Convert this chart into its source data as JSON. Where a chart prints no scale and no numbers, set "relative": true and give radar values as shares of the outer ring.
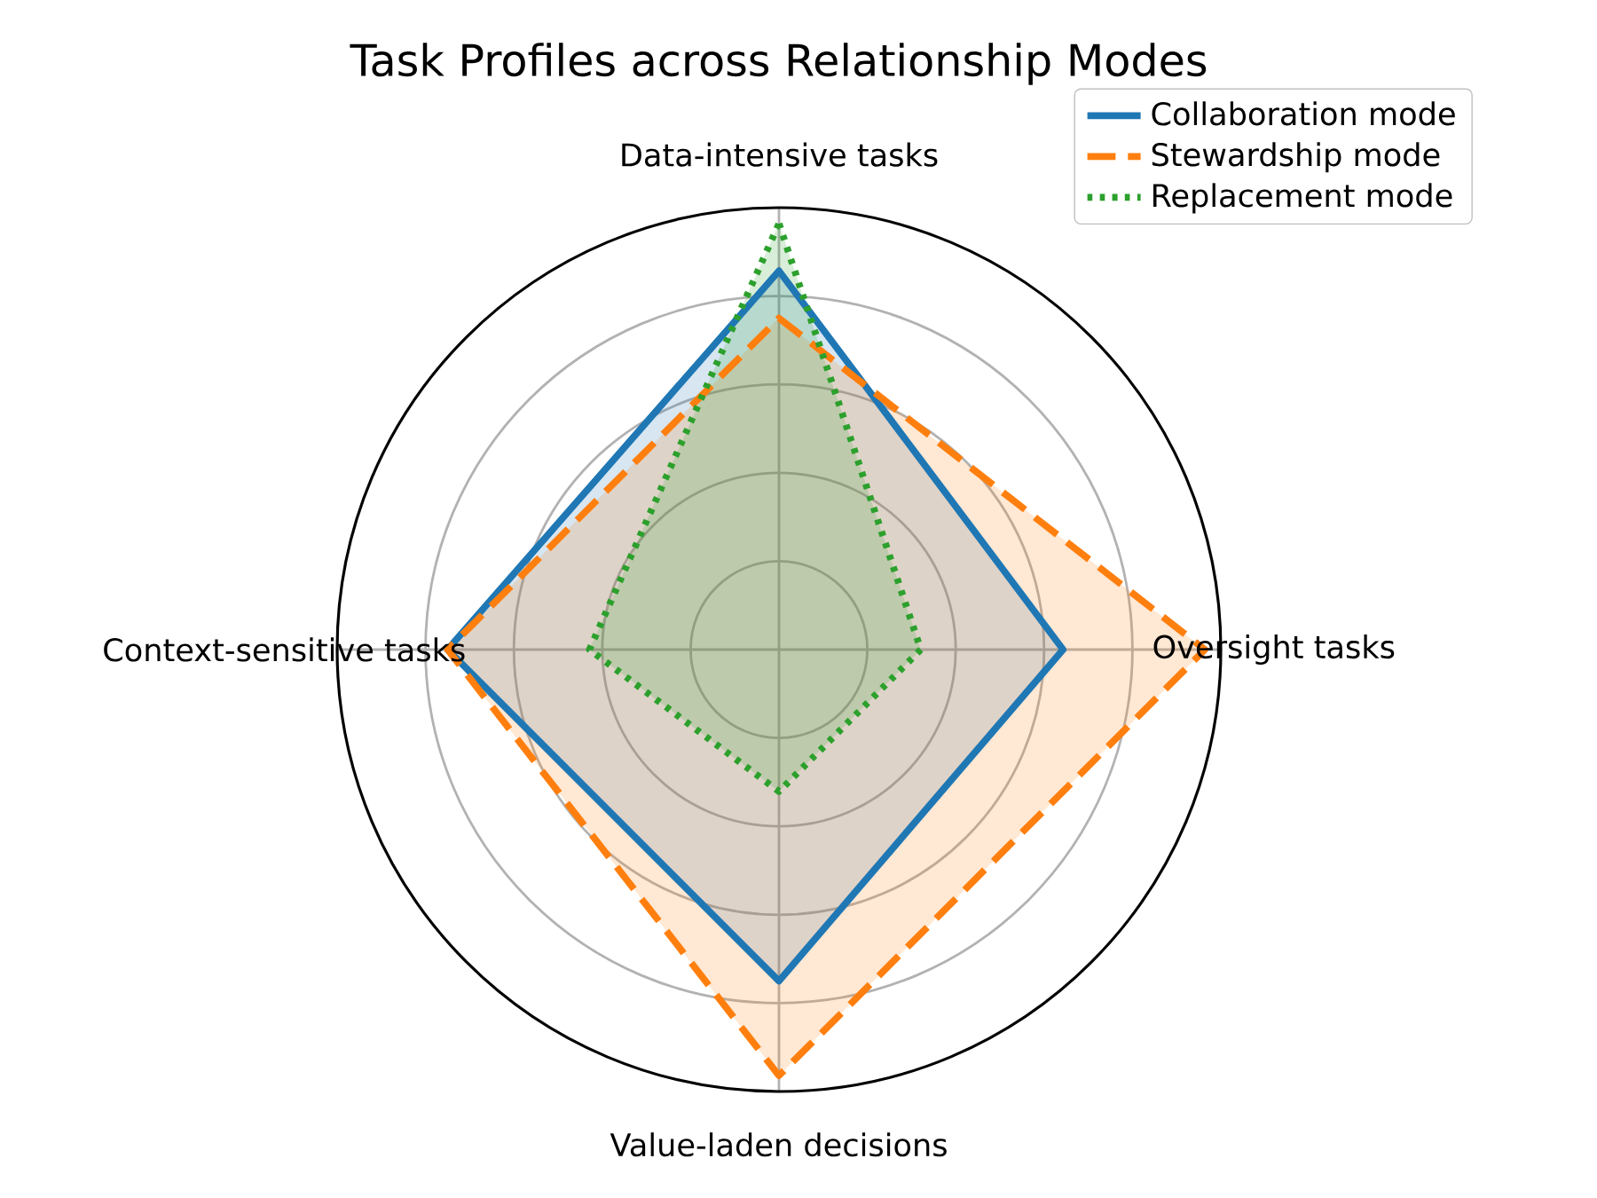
{
  "chart_data": {
    "type": "radar",
    "title": "Task Profiles across Relationship Modes",
    "relative": true,
    "grid": true,
    "legend": "top right",
    "categories": [
      "Data-intensive tasks",
      "Oversight tasks",
      "Value-laden decisions",
      "Context-sensitive tasks"
    ],
    "series": [
      {
        "name": "Collaboration mode",
        "color": "#1f77b4",
        "line_style": "solid",
        "values": [
          0.857,
          0.643,
          0.75,
          0.75
        ]
      },
      {
        "name": "Stewardship mode",
        "color": "#ff7f0e",
        "line_style": "dashed",
        "values": [
          0.75,
          0.964,
          0.964,
          0.75
        ]
      },
      {
        "name": "Replacement mode",
        "color": "#2ca02c",
        "line_style": "dotted",
        "values": [
          0.964,
          0.321,
          0.321,
          0.429
        ]
      }
    ]
  }
}
